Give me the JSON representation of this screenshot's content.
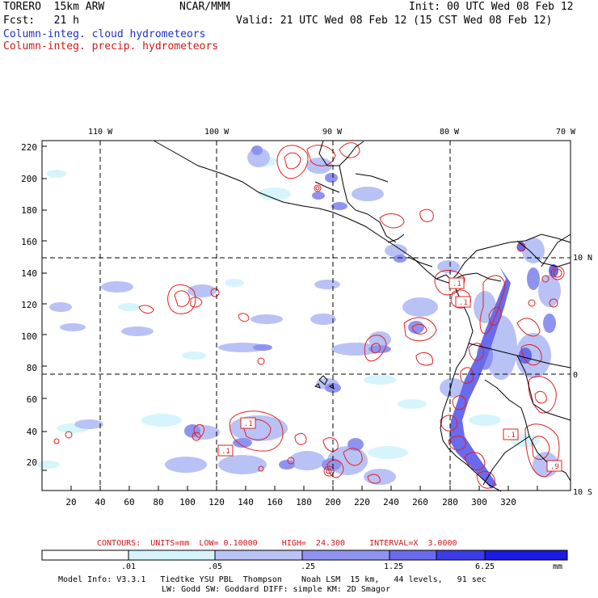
{
  "header": {
    "model": "TORERO  15km ARW",
    "org": "NCAR/MMM",
    "init": "Init: 00 UTC Wed 08 Feb 12",
    "fcst": "Fcst:   21 h",
    "valid": "Valid: 21 UTC Wed 08 Feb 12 (15 CST Wed 08 Feb 12)",
    "field1": "Column-integ. cloud hydrometeors",
    "field2": "Column-integ. precip. hydrometeors"
  },
  "map": {
    "lon_labels": [
      "110 W",
      "100 W",
      "90 W",
      "80 W",
      "70 W"
    ],
    "lat_labels": [
      "10 N",
      "0",
      "10 S"
    ],
    "x_ticks": [
      "20",
      "40",
      "60",
      "80",
      "100",
      "120",
      "140",
      "160",
      "180",
      "200",
      "220",
      "240",
      "260",
      "280",
      "300",
      "320"
    ],
    "y_ticks": [
      "20",
      "40",
      "60",
      "80",
      "100",
      "120",
      "140",
      "160",
      "180",
      "200",
      "220"
    ],
    "contour_labels": [
      ".1",
      ".1",
      ".1",
      ".1",
      ".1",
      ".1",
      ".9"
    ]
  },
  "contours_line": {
    "label": "CONTOURS:  UNITS=mm  LOW= 0.10000     HIGH=  24.300     INTERVAL=X  3.0000"
  },
  "colorbar": {
    "ticks": [
      ".01",
      ".05",
      ".25",
      "1.25",
      "6.25"
    ],
    "unit": "mm",
    "colors": [
      "#ffffff",
      "#d6f4fb",
      "#b9c2f5",
      "#8f93f0",
      "#6a6aec",
      "#3b3be8",
      "#1a1ae0"
    ]
  },
  "footer": {
    "line1": "Model Info: V3.3.1   Tiedtke YSU PBL  Thompson    Noah LSM  15 km,   44 levels,   91 sec",
    "line2": "LW: Godd SW: Goddard DIFF: simple KM: 2D Smagor"
  }
}
